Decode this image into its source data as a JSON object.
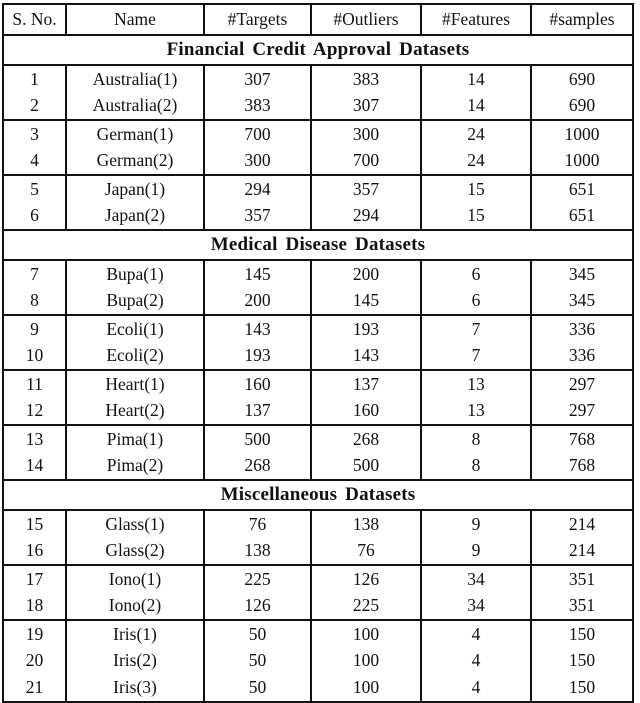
{
  "page": {
    "background": "#ffffff",
    "text_color": "#111111",
    "rule_color": "#111111"
  },
  "table": {
    "columns": [
      "S. No.",
      "Name",
      "#Targets",
      "#Outliers",
      "#Features",
      "#samples"
    ],
    "sections": [
      {
        "title": "Financial Credit Approval Datasets",
        "groups": [
          [
            [
              "1",
              "Australia(1)",
              "307",
              "383",
              "14",
              "690"
            ],
            [
              "2",
              "Australia(2)",
              "383",
              "307",
              "14",
              "690"
            ]
          ],
          [
            [
              "3",
              "German(1)",
              "700",
              "300",
              "24",
              "1000"
            ],
            [
              "4",
              "German(2)",
              "300",
              "700",
              "24",
              "1000"
            ]
          ],
          [
            [
              "5",
              "Japan(1)",
              "294",
              "357",
              "15",
              "651"
            ],
            [
              "6",
              "Japan(2)",
              "357",
              "294",
              "15",
              "651"
            ]
          ]
        ]
      },
      {
        "title": "Medical Disease Datasets",
        "groups": [
          [
            [
              "7",
              "Bupa(1)",
              "145",
              "200",
              "6",
              "345"
            ],
            [
              "8",
              "Bupa(2)",
              "200",
              "145",
              "6",
              "345"
            ]
          ],
          [
            [
              "9",
              "Ecoli(1)",
              "143",
              "193",
              "7",
              "336"
            ],
            [
              "10",
              "Ecoli(2)",
              "193",
              "143",
              "7",
              "336"
            ]
          ],
          [
            [
              "11",
              "Heart(1)",
              "160",
              "137",
              "13",
              "297"
            ],
            [
              "12",
              "Heart(2)",
              "137",
              "160",
              "13",
              "297"
            ]
          ],
          [
            [
              "13",
              "Pima(1)",
              "500",
              "268",
              "8",
              "768"
            ],
            [
              "14",
              "Pima(2)",
              "268",
              "500",
              "8",
              "768"
            ]
          ]
        ]
      },
      {
        "title": "Miscellaneous Datasets",
        "groups": [
          [
            [
              "15",
              "Glass(1)",
              "76",
              "138",
              "9",
              "214"
            ],
            [
              "16",
              "Glass(2)",
              "138",
              "76",
              "9",
              "214"
            ]
          ],
          [
            [
              "17",
              "Iono(1)",
              "225",
              "126",
              "34",
              "351"
            ],
            [
              "18",
              "Iono(2)",
              "126",
              "225",
              "34",
              "351"
            ]
          ],
          [
            [
              "19",
              "Iris(1)",
              "50",
              "100",
              "4",
              "150"
            ],
            [
              "20",
              "Iris(2)",
              "50",
              "100",
              "4",
              "150"
            ],
            [
              "21",
              "Iris(3)",
              "50",
              "100",
              "4",
              "150"
            ]
          ]
        ]
      }
    ]
  }
}
